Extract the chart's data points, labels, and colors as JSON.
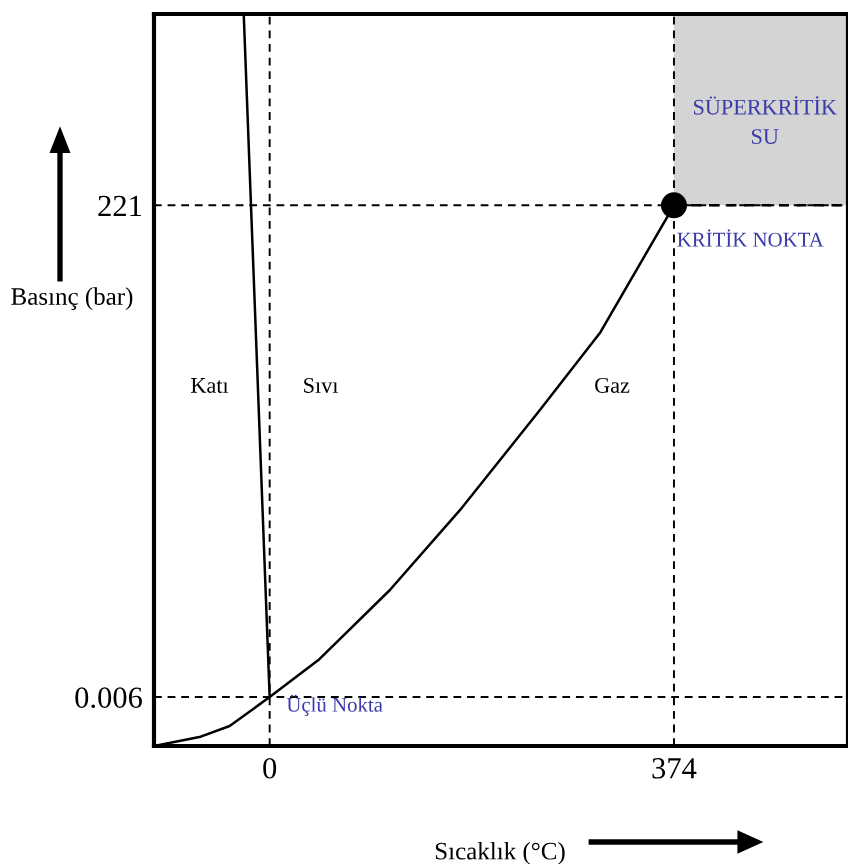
{
  "chart_data": {
    "type": "line",
    "xlabel": "Sıcaklık (°C)",
    "ylabel": "Basınç (bar)",
    "xlim": [
      -107,
      535
    ],
    "ylim": [
      -22,
      307
    ],
    "xticks": [
      0,
      374
    ],
    "yticks": [
      {
        "value": 0.006,
        "label": "0.006"
      },
      221
    ],
    "grid": false,
    "legend": false,
    "marker": "none",
    "line_style": "solid",
    "series": [
      {
        "color": "#000000",
        "x": [
          -24,
          0
        ],
        "values": [
          307,
          0.006
        ]
      },
      {
        "color": "#000000",
        "x": [
          -107,
          -65,
          -37,
          0,
          46,
          111,
          176,
          250,
          306,
          374
        ],
        "values": [
          -22,
          -18,
          -13,
          0.006,
          17,
          48,
          84,
          129,
          164,
          221
        ]
      },
      {
        "type": "scatter",
        "marker": "circle",
        "color": "#000000",
        "x": [
          374
        ],
        "values": [
          221
        ]
      },
      {
        "type": "line",
        "line_style": "dashed",
        "color": "#000000",
        "x": [
          374,
          535
        ],
        "values": [
          221,
          221
        ],
        "lower": [
          221,
          221
        ],
        "upper": [
          307,
          307
        ]
      }
    ],
    "ref_lines": [
      {
        "axis": "x",
        "value": 0,
        "line_style": "dashed"
      },
      {
        "axis": "x",
        "value": 374,
        "line_style": "dashed"
      },
      {
        "axis": "y",
        "value": 0.006,
        "line_style": "dashed"
      },
      {
        "axis": "y",
        "value": 221,
        "line_style": "dashed"
      }
    ],
    "annotations": [
      "Katı",
      "Sıvı",
      "Gaz",
      {
        "text": "KRİTİK NOKTA",
        "x": 374,
        "y": 221
      },
      "SÜPERKRİTİK\nSU",
      {
        "text": "Üçlü Nokta",
        "x": 0,
        "y": 0.006
      }
    ]
  }
}
